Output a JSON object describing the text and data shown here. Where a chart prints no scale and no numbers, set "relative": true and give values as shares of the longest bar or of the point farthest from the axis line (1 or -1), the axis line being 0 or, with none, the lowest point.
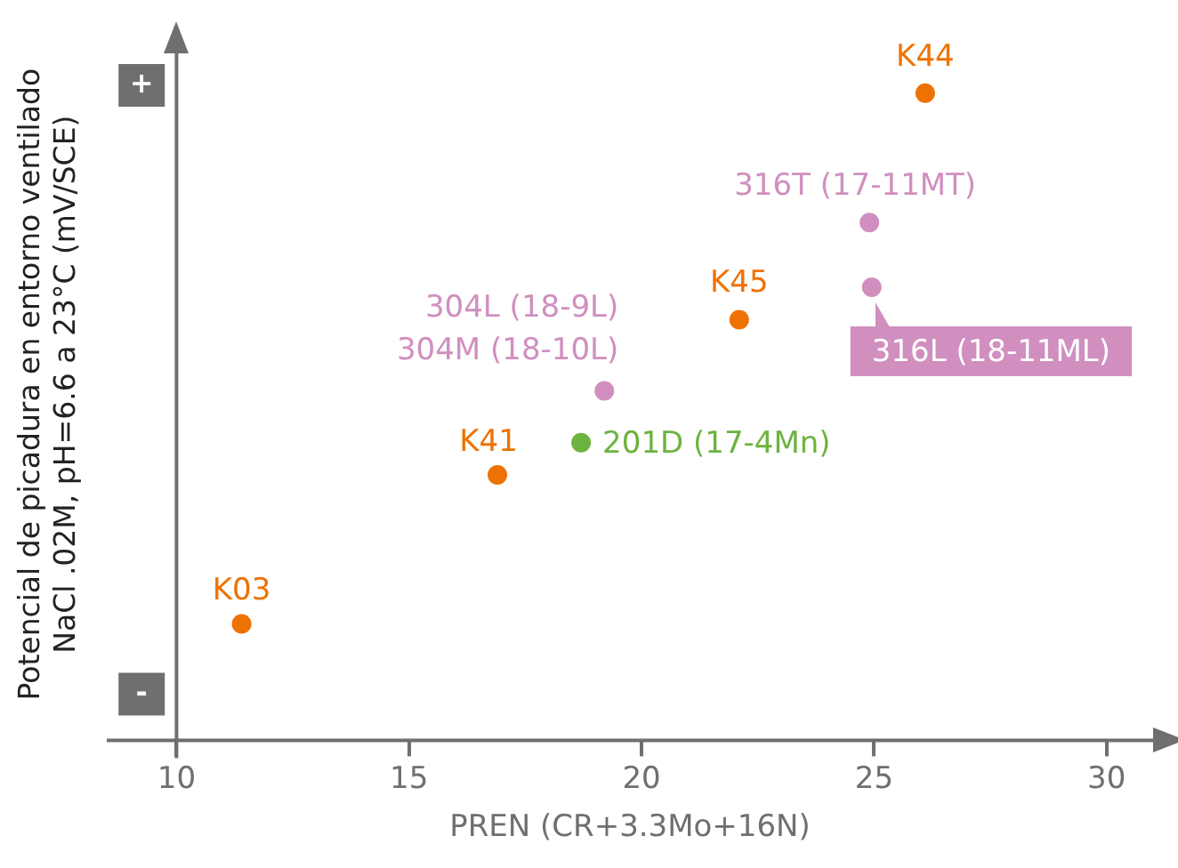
{
  "chart_data": {
    "type": "scatter",
    "relative": true,
    "xlabel": "PREN (CR+3.3Mo+16N)",
    "ylabel": "Potencial de picadura en entorno ventilado\nNaCl .02M, pH=6.6 a 23°C (mV/SCE)",
    "xlim": [
      8.5,
      31
    ],
    "xticks": [
      10,
      15,
      20,
      25,
      30
    ],
    "marker": "circle",
    "series": [
      {
        "color": "#ee7203",
        "x": [
          11.4,
          16.9,
          22.1,
          26.1
        ],
        "values": [
          0.18,
          0.41,
          0.65,
          1
        ]
      },
      {
        "color": "#d08fbf",
        "x": [
          19.2,
          24.9,
          24.95
        ],
        "values": [
          0.54,
          0.8,
          0.7
        ]
      },
      {
        "color": "#6cb33f",
        "x": [
          18.7
        ],
        "values": [
          0.46
        ]
      }
    ],
    "annotations": [
      "+",
      "-",
      {
        "text": "K03",
        "x": 11.4,
        "y": 0.18
      },
      {
        "text": "K41",
        "x": 16.9,
        "y": 0.41
      },
      {
        "text": "K45",
        "x": 22.1,
        "y": 0.65
      },
      {
        "text": "K44",
        "x": 26.1,
        "y": 1
      },
      {
        "text": "304L (18-9L)\n304M (18-10L)",
        "x": 19.2,
        "y": 0.54
      },
      {
        "text": "316T (17-11MT)",
        "x": 24.9,
        "y": 0.8
      },
      {
        "text": "316L (18-11ML)",
        "x": 24.95,
        "y": 0.7
      },
      {
        "text": "201D (17-4Mn)",
        "x": 18.7,
        "y": 0.46
      }
    ]
  }
}
